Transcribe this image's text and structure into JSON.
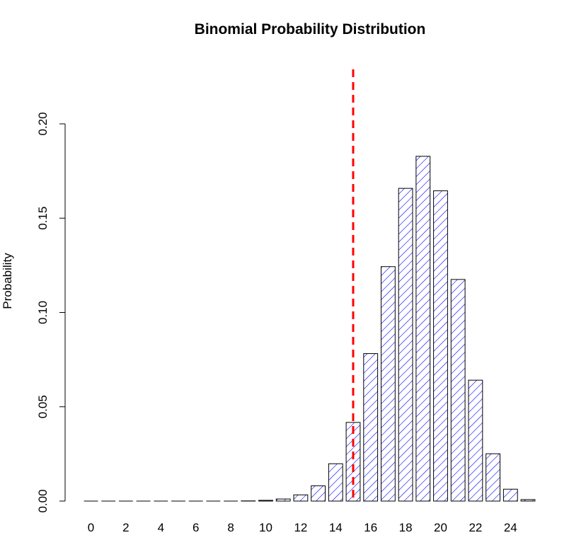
{
  "chart_data": {
    "type": "bar",
    "title": "Binomial Probability Distribution",
    "xlabel": "",
    "ylabel": "Probability",
    "categories": [
      "0",
      "1",
      "2",
      "3",
      "4",
      "5",
      "6",
      "7",
      "8",
      "9",
      "10",
      "11",
      "12",
      "13",
      "14",
      "15",
      "16",
      "17",
      "18",
      "19",
      "20",
      "21",
      "22",
      "23",
      "24",
      "25"
    ],
    "x_tick_labels": [
      "0",
      "2",
      "4",
      "6",
      "8",
      "10",
      "12",
      "14",
      "16",
      "18",
      "20",
      "22",
      "24"
    ],
    "values": [
      0,
      0,
      0,
      0,
      0,
      0,
      0,
      0,
      0,
      0.0001,
      0.0004,
      0.0011,
      0.0033,
      0.0081,
      0.0198,
      0.0417,
      0.0782,
      0.1243,
      0.1658,
      0.1828,
      0.1645,
      0.1175,
      0.0641,
      0.0251,
      0.0063,
      0.0008
    ],
    "ylim": [
      0,
      0.2
    ],
    "y_ticks": [
      "0.00",
      "0.05",
      "0.10",
      "0.15",
      "0.20"
    ],
    "reference_line": {
      "x": 15,
      "style": "dashed",
      "color": "#ff0000"
    },
    "bar_fill": "hatched",
    "bar_color": "#0000ff",
    "bar_border_color": "#000000",
    "grid": false
  }
}
